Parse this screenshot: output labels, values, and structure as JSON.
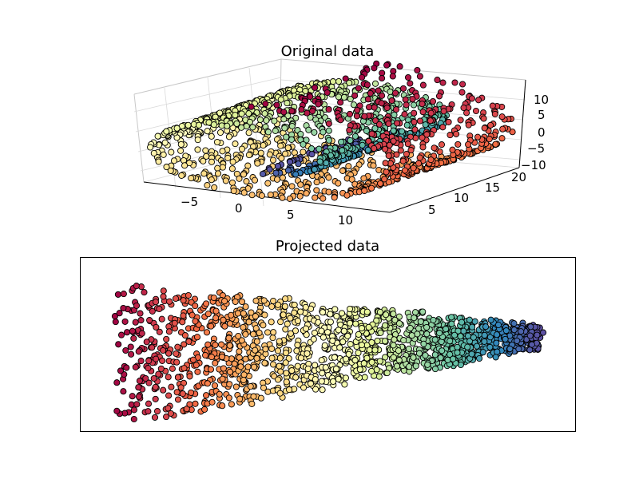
{
  "chart_data": [
    {
      "type": "scatter",
      "title": "Original data",
      "projection": "3d",
      "note": "Swiss-roll style manifold, points colored by position along the roll (Spectral colormap)",
      "x_ticks": [
        "−5",
        "0",
        "5",
        "10"
      ],
      "y_ticks": [
        "5",
        "10",
        "15",
        "20"
      ],
      "z_ticks": [
        "10",
        "5",
        "0",
        "−5",
        "−10"
      ],
      "x_range": [
        -10,
        13
      ],
      "y_range": [
        0,
        21
      ],
      "z_range": [
        -11,
        14
      ],
      "n_points": 1500,
      "colormap": [
        "#9e0142",
        "#d53e4f",
        "#f46d43",
        "#fdae61",
        "#fee08b",
        "#ffffbf",
        "#e6f598",
        "#abdda4",
        "#66c2a5",
        "#3288bd",
        "#5e4fa2"
      ]
    },
    {
      "type": "scatter",
      "title": "Projected data",
      "note": "2D embedding forming a tapering band, color gradient from left (red) to right (purple); no axis ticks",
      "x_range": [
        0,
        1
      ],
      "y_range": [
        -1,
        1
      ],
      "n_points": 1500,
      "colormap": [
        "#9e0142",
        "#d53e4f",
        "#f46d43",
        "#fdae61",
        "#fee08b",
        "#ffffbf",
        "#e6f598",
        "#abdda4",
        "#66c2a5",
        "#3288bd",
        "#5e4fa2"
      ]
    }
  ]
}
